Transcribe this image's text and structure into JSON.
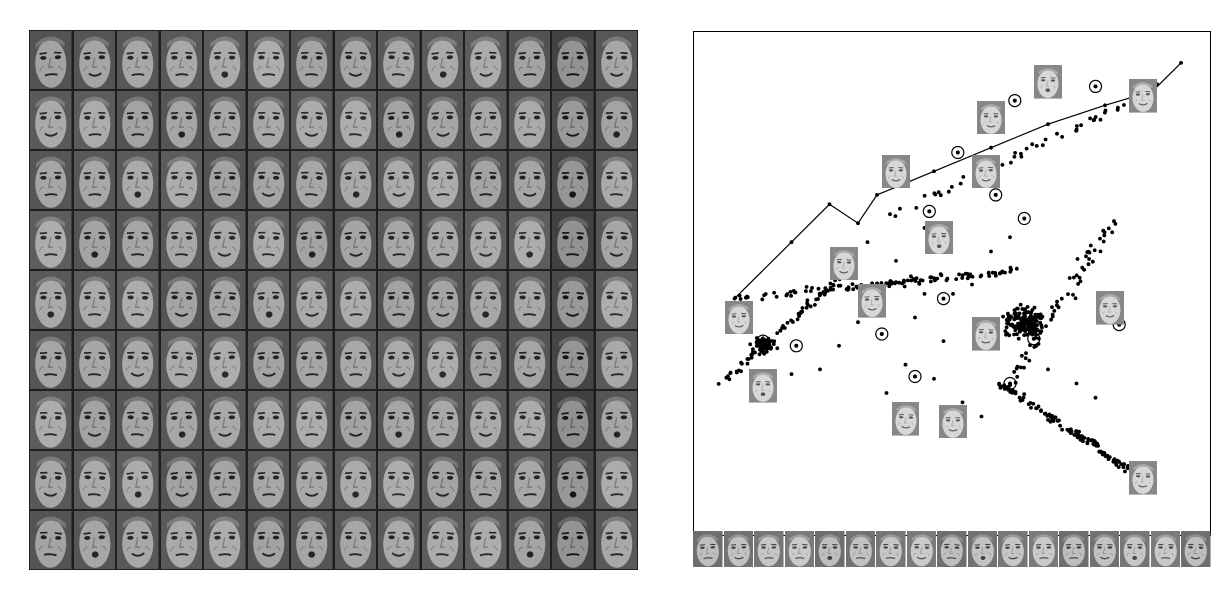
{
  "figure": {
    "left_panel": {
      "kind": "image-mosaic",
      "rows": 9,
      "cols": 14,
      "content": "face-images"
    },
    "right_panel": {
      "kind": "2d-embedding-scatter",
      "point_color": "#000000",
      "circled_landmarks": 15,
      "face_insets": 15
    },
    "bottom_strip": {
      "kind": "face-sequence",
      "count": 17
    }
  },
  "chart_data": {
    "type": "scatter",
    "title": "",
    "xlabel": "",
    "ylabel": "",
    "grid": false,
    "legend": "none",
    "series": [
      {
        "name": "",
        "trajectory": [
          [
            5.0,
            9.8
          ],
          [
            4.7,
            9.2
          ],
          [
            4.2,
            8.9
          ],
          [
            3.6,
            8.5
          ],
          [
            3.0,
            8.0
          ],
          [
            2.4,
            7.5
          ],
          [
            1.8,
            7.0
          ],
          [
            1.6,
            6.4
          ],
          [
            1.3,
            6.8
          ],
          [
            0.9,
            6.0
          ],
          [
            0.3,
            4.8
          ]
        ],
        "branches": [
          {
            "from": [
              0.3,
              4.8
            ],
            "to": [
              3.3,
              5.4
            ],
            "n": 110,
            "spread": 0.12
          },
          {
            "from": [
              0.1,
              2.9
            ],
            "to": [
              1.5,
              5.4
            ],
            "n": 70,
            "spread": 0.1
          },
          {
            "from": [
              3.2,
              3.0
            ],
            "to": [
              4.3,
              6.5
            ],
            "n": 60,
            "spread": 0.15
          },
          {
            "from": [
              3.1,
              3.0
            ],
            "to": [
              4.55,
              1.05
            ],
            "n": 120,
            "spread": 0.1
          },
          {
            "from": [
              1.9,
              6.5
            ],
            "to": [
              4.8,
              9.3
            ],
            "n": 60,
            "spread": 0.12
          }
        ],
        "clusters": [
          {
            "center": [
              3.35,
              4.3
            ],
            "n": 170,
            "spread": 0.35
          },
          {
            "center": [
              0.6,
              3.8
            ],
            "n": 60,
            "spread": 0.2
          }
        ],
        "scattered": [
          [
            2.0,
            5.6
          ],
          [
            2.3,
            4.9
          ],
          [
            1.6,
            4.3
          ],
          [
            1.4,
            3.8
          ],
          [
            2.1,
            3.4
          ],
          [
            2.4,
            3.1
          ],
          [
            2.7,
            2.6
          ],
          [
            2.9,
            2.3
          ],
          [
            1.9,
            2.8
          ],
          [
            1.2,
            3.3
          ],
          [
            0.9,
            3.2
          ],
          [
            2.2,
            4.4
          ],
          [
            2.6,
            4.9
          ],
          [
            2.8,
            5.1
          ],
          [
            3.0,
            5.8
          ],
          [
            3.2,
            6.1
          ],
          [
            1.7,
            6.0
          ],
          [
            2.3,
            6.3
          ],
          [
            1.5,
            5.0
          ],
          [
            3.6,
            3.3
          ],
          [
            3.9,
            3.0
          ],
          [
            4.1,
            2.7
          ],
          [
            2.5,
            3.9
          ],
          [
            2.0,
            2.5
          ]
        ],
        "circled": [
          [
            0.6,
            3.9
          ],
          [
            0.95,
            3.8
          ],
          [
            1.85,
            4.05
          ],
          [
            2.35,
            6.65
          ],
          [
            2.5,
            4.8
          ],
          [
            2.65,
            7.9
          ],
          [
            3.05,
            7.0
          ],
          [
            3.25,
            9.0
          ],
          [
            3.35,
            6.5
          ],
          [
            4.1,
            9.3
          ],
          [
            2.2,
            3.15
          ],
          [
            3.2,
            3.0
          ],
          [
            3.45,
            3.95
          ],
          [
            4.35,
            4.25
          ],
          [
            4.55,
            1.05
          ]
        ],
        "insets": [
          [
            0.35,
            4.35
          ],
          [
            0.6,
            2.9
          ],
          [
            1.45,
            5.5
          ],
          [
            1.75,
            4.7
          ],
          [
            2.0,
            7.45
          ],
          [
            2.1,
            2.2
          ],
          [
            2.45,
            6.05
          ],
          [
            2.6,
            2.15
          ],
          [
            2.95,
            4.0
          ],
          [
            2.95,
            7.45
          ],
          [
            3.0,
            8.6
          ],
          [
            3.6,
            9.35
          ],
          [
            4.6,
            9.05
          ],
          [
            4.25,
            4.55
          ],
          [
            4.6,
            0.95
          ]
        ]
      }
    ],
    "xlim": [
      0,
      5.2
    ],
    "ylim": [
      0,
      10.2
    ]
  }
}
